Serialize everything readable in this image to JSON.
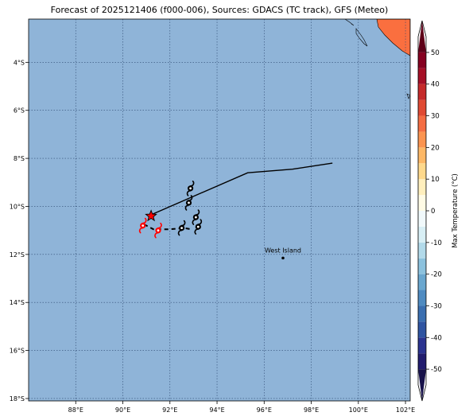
{
  "title": "Forecast of 2025121406 (f000-006), Sources: GDACS (TC track), GFS (Meteo)",
  "colors": {
    "ocean": "#8fb4d8",
    "land": "#fa6f3f",
    "grid": "#2f4a72",
    "track": "#000000",
    "storm_current": "#ff0000",
    "storm_forecast": "#000000"
  },
  "map": {
    "lon_range": [
      86.0,
      102.2
    ],
    "lat_range": [
      -18.1,
      -2.2
    ],
    "lon_ticks": [
      {
        "value": 88,
        "label": "88°E"
      },
      {
        "value": 90,
        "label": "90°E"
      },
      {
        "value": 92,
        "label": "92°E"
      },
      {
        "value": 94,
        "label": "94°E"
      },
      {
        "value": 96,
        "label": "96°E"
      },
      {
        "value": 98,
        "label": "98°E"
      },
      {
        "value": 100,
        "label": "100°E"
      },
      {
        "value": 102,
        "label": "102°E"
      }
    ],
    "lat_ticks": [
      {
        "value": -4,
        "label": "4°S"
      },
      {
        "value": -6,
        "label": "6°S"
      },
      {
        "value": -8,
        "label": "8°S"
      },
      {
        "value": -10,
        "label": "10°S"
      },
      {
        "value": -12,
        "label": "12°S"
      },
      {
        "value": -14,
        "label": "14°S"
      },
      {
        "value": -16,
        "label": "16°S"
      },
      {
        "value": -18,
        "label": "18°S"
      }
    ],
    "grid": true
  },
  "track": {
    "past": [
      [
        98.9,
        -8.2
      ],
      [
        97.2,
        -8.45
      ],
      [
        95.3,
        -8.6
      ],
      [
        91.2,
        -10.35
      ]
    ],
    "current": [
      91.2,
      -10.4
    ],
    "forecast_dashed": [
      [
        90.9,
        -10.75
      ],
      [
        91.3,
        -10.95
      ],
      [
        92.0,
        -10.95
      ],
      [
        92.6,
        -10.9
      ],
      [
        92.9,
        -10.95
      ]
    ]
  },
  "storms": [
    {
      "lon": 92.87,
      "lat": -9.25,
      "kind": "forecast"
    },
    {
      "lon": 92.8,
      "lat": -9.85,
      "kind": "forecast"
    },
    {
      "lon": 93.1,
      "lat": -10.45,
      "kind": "forecast"
    },
    {
      "lon": 93.2,
      "lat": -10.85,
      "kind": "forecast"
    },
    {
      "lon": 92.5,
      "lat": -10.9,
      "kind": "forecast"
    },
    {
      "lon": 90.85,
      "lat": -10.8,
      "kind": "current"
    },
    {
      "lon": 91.5,
      "lat": -11.0,
      "kind": "current"
    }
  ],
  "places": [
    {
      "name": "West Island",
      "lon": 96.8,
      "lat": -12.15
    }
  ],
  "colorbar": {
    "label": "Max Temperature (°C)",
    "min": -55,
    "max": 55,
    "ticks": [
      -50,
      -40,
      -30,
      -20,
      -10,
      0,
      10,
      20,
      30,
      40,
      50
    ],
    "bins": [
      {
        "from": -55,
        "to": -50,
        "color": "#18124a"
      },
      {
        "from": -50,
        "to": -45,
        "color": "#221c6e"
      },
      {
        "from": -45,
        "to": -40,
        "color": "#2b3390"
      },
      {
        "from": -40,
        "to": -35,
        "color": "#2f54a1"
      },
      {
        "from": -35,
        "to": -30,
        "color": "#3b6fb0"
      },
      {
        "from": -30,
        "to": -25,
        "color": "#4f8bc1"
      },
      {
        "from": -25,
        "to": -20,
        "color": "#6aa7cf"
      },
      {
        "from": -20,
        "to": -15,
        "color": "#8cc2de"
      },
      {
        "from": -15,
        "to": -10,
        "color": "#b2daea"
      },
      {
        "from": -10,
        "to": -5,
        "color": "#d8eff5"
      },
      {
        "from": -5,
        "to": 0,
        "color": "#f1f9fb"
      },
      {
        "from": 0,
        "to": 5,
        "color": "#fffbe5"
      },
      {
        "from": 5,
        "to": 10,
        "color": "#ffefbd"
      },
      {
        "from": 10,
        "to": 15,
        "color": "#fed98c"
      },
      {
        "from": 15,
        "to": 20,
        "color": "#fdb866"
      },
      {
        "from": 20,
        "to": 25,
        "color": "#fb9450"
      },
      {
        "from": 25,
        "to": 30,
        "color": "#f46d43"
      },
      {
        "from": 30,
        "to": 35,
        "color": "#e04a33"
      },
      {
        "from": 35,
        "to": 40,
        "color": "#c52a2a"
      },
      {
        "from": 40,
        "to": 45,
        "color": "#a50f26"
      },
      {
        "from": 45,
        "to": 50,
        "color": "#850020"
      },
      {
        "from": 50,
        "to": 55,
        "color": "#5e0018"
      }
    ]
  }
}
